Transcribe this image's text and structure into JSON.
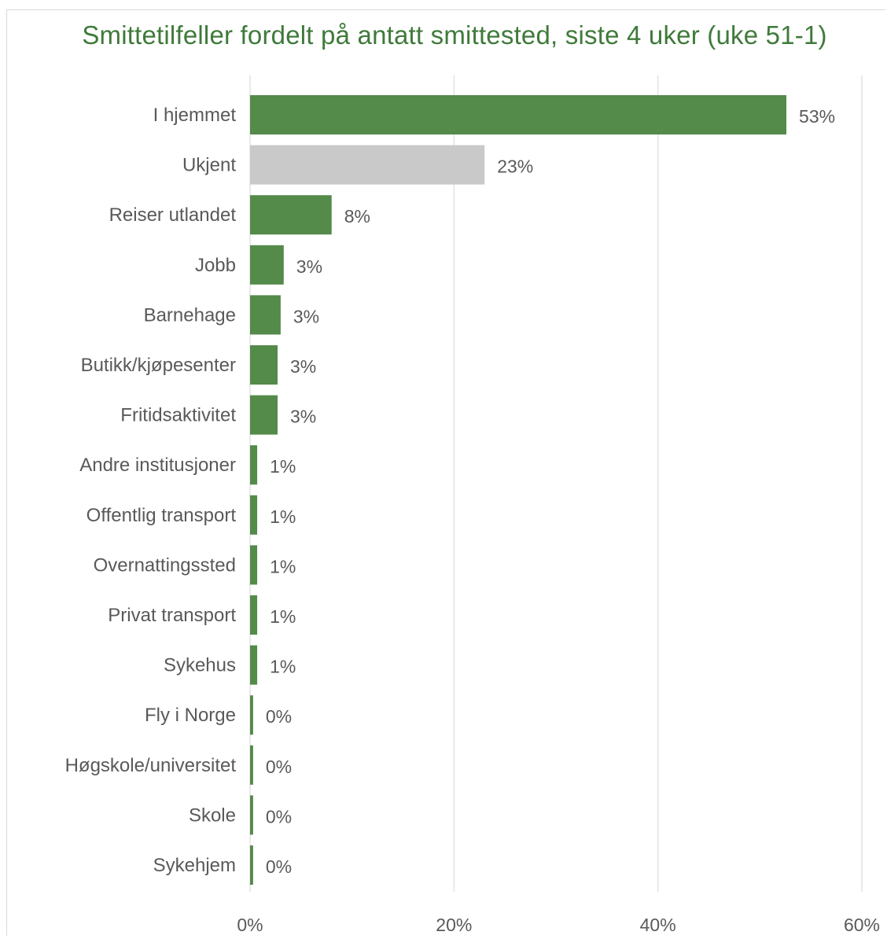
{
  "chart_data": {
    "type": "bar",
    "orientation": "horizontal",
    "title": "Smittetilfeller fordelt på antatt smittested, siste 4 uker (uke 51-1)",
    "categories": [
      "I hjemmet",
      "Ukjent",
      "Reiser utlandet",
      "Jobb",
      "Barnehage",
      "Butikk/kjøpesenter",
      "Fritidsaktivitet",
      "Andre institusjoner",
      "Offentlig transport",
      "Overnattingssted",
      "Privat transport",
      "Sykehus",
      "Fly i Norge",
      "Høgskole/universitet",
      "Skole",
      "Sykehjem"
    ],
    "values": [
      52.6,
      23.0,
      8.0,
      3.3,
      3.0,
      2.7,
      2.7,
      0.7,
      0.7,
      0.7,
      0.7,
      0.7,
      0.3,
      0.3,
      0.3,
      0.3
    ],
    "value_labels": [
      "53%",
      "23%",
      "8%",
      "3%",
      "3%",
      "3%",
      "3%",
      "1%",
      "1%",
      "1%",
      "1%",
      "1%",
      "0%",
      "0%",
      "0%",
      "0%"
    ],
    "xlim": [
      0,
      60
    ],
    "xticks": [
      0,
      20,
      40,
      60
    ],
    "xtick_labels": [
      "0%",
      "20%",
      "40%",
      "60%"
    ],
    "xlabel": "",
    "ylabel": "",
    "grid": true,
    "legend": "none",
    "colors": {
      "default_bar": "#548a4a",
      "highlight_bar": "#c9c9c9",
      "title": "#3f7a3a",
      "text": "#595959",
      "grid": "#e3e3e3"
    },
    "gray_categories": [
      "Ukjent"
    ]
  }
}
